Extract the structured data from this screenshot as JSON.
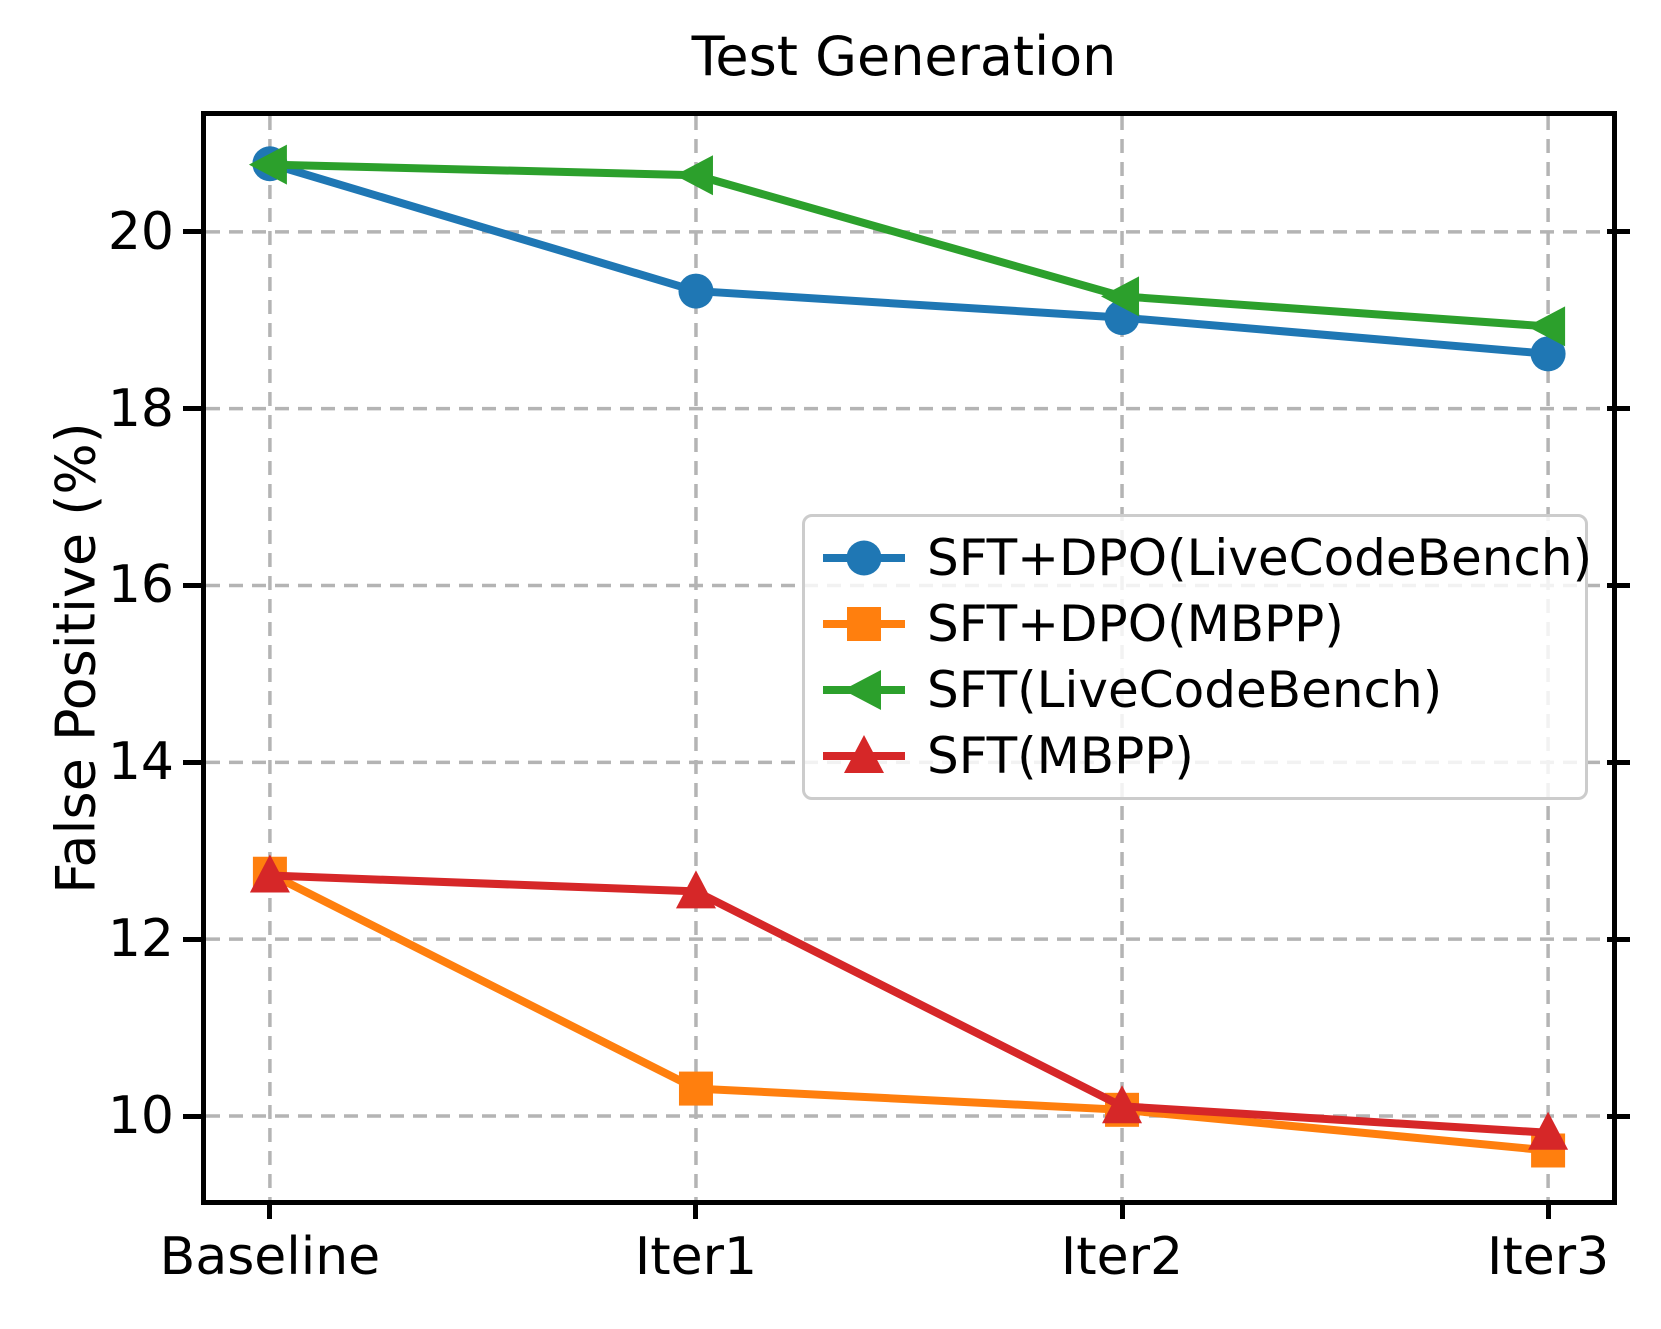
{
  "chart_data": {
    "type": "line",
    "title": "Test Generation",
    "xlabel": "",
    "ylabel": "False Positive (%)",
    "categories": [
      "Baseline",
      "Iter1",
      "Iter2",
      "Iter3"
    ],
    "y_ticks": [
      10,
      12,
      14,
      16,
      18,
      20
    ],
    "ylim": [
      9.05,
      21.31
    ],
    "xlim": [
      -0.15,
      3.15
    ],
    "grid": true,
    "grid_color": "#b4b4b4",
    "axis_color": "#000000",
    "legend_position": "center-right",
    "series": [
      {
        "name": "SFT+DPO(LiveCodeBench)",
        "color": "#1f77b4",
        "marker": "circle",
        "values": [
          20.77,
          19.33,
          19.03,
          18.62
        ]
      },
      {
        "name": "SFT+DPO(MBPP)",
        "color": "#ff7f0e",
        "marker": "square",
        "values": [
          12.74,
          10.31,
          10.07,
          9.61
        ]
      },
      {
        "name": "SFT(LiveCodeBench)",
        "color": "#2ca02c",
        "marker": "triangle-left",
        "values": [
          20.76,
          20.64,
          19.27,
          18.93
        ]
      },
      {
        "name": "SFT(MBPP)",
        "color": "#d62728",
        "marker": "triangle-up",
        "values": [
          12.72,
          12.54,
          10.11,
          9.81
        ]
      }
    ]
  }
}
